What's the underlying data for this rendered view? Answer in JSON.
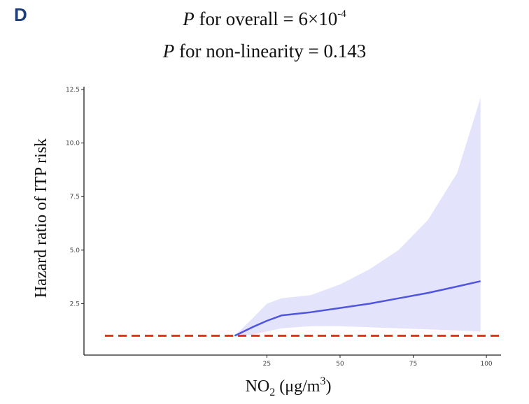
{
  "panel_label": "D",
  "stats": {
    "overall_prefix": "P",
    "overall_mid": " for overall = 6×10",
    "overall_exp": "-4",
    "nonlin_prefix": "P",
    "nonlin_text": " for non-linearity = 0.143"
  },
  "chart_data": {
    "type": "line",
    "ylabel": "Hazard ratio of ITP risk",
    "xlabel_main": "NO",
    "xlabel_sub": "2",
    "xlabel_unit_pre": " (μg/m",
    "xlabel_unit_sup": "3",
    "xlabel_unit_post": ")",
    "xlim": [
      0,
      100
    ],
    "ylim": [
      0,
      12.5
    ],
    "xticks": [
      25,
      50,
      75,
      100
    ],
    "xtick_labels": [
      "25",
      "50",
      "75",
      "100"
    ],
    "yticks": [
      2.5,
      5.0,
      7.5,
      10.0,
      12.5
    ],
    "ytick_labels": [
      "2.5",
      "5.0",
      "7.5",
      "10.0",
      "12.5"
    ],
    "reference_line": 1.0,
    "series": [
      {
        "x": [
          14,
          20,
          25,
          30,
          40,
          50,
          60,
          70,
          80,
          90,
          98
        ],
        "y": [
          1.0,
          1.4,
          1.7,
          1.95,
          2.1,
          2.3,
          2.5,
          2.75,
          3.0,
          3.3,
          3.55
        ],
        "lower": [
          1.0,
          1.05,
          1.2,
          1.35,
          1.45,
          1.45,
          1.4,
          1.35,
          1.3,
          1.25,
          1.2
        ],
        "upper": [
          1.0,
          1.8,
          2.5,
          2.75,
          2.9,
          3.4,
          4.1,
          5.0,
          6.4,
          8.6,
          12.1
        ]
      }
    ],
    "colors": {
      "line": "#4f55e0",
      "band": "#e3e3fb",
      "reference": "#e8301c",
      "axis": "#222222"
    }
  }
}
